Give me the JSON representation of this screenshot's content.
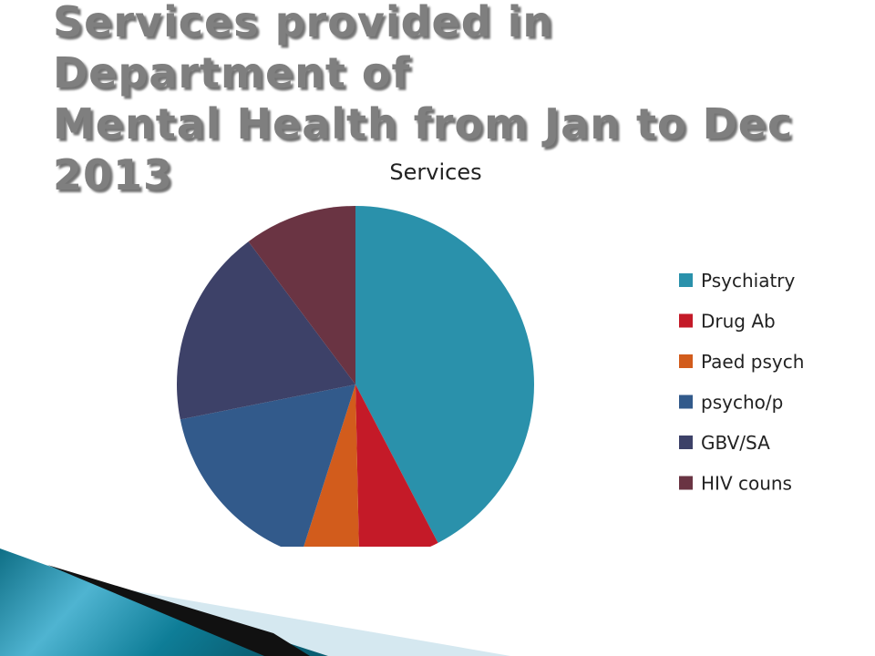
{
  "slide": {
    "title": "Services provided in Department of\nMental Health from Jan to Dec\n2013"
  },
  "chart_data": {
    "type": "pie",
    "title": "Services",
    "categories": [
      "Psychiatry",
      "Drug Ab",
      "Paed psych",
      "psycho/p",
      "GBV/SA",
      "HIV couns"
    ],
    "values": [
      43.5,
      7.5,
      5.4,
      17.4,
      18.4,
      10.5
    ],
    "colors": [
      "#2A91AB",
      "#C41A28",
      "#D25C1C",
      "#325A8B",
      "#3D4168",
      "#6A3443"
    ],
    "legend_position": "right"
  }
}
